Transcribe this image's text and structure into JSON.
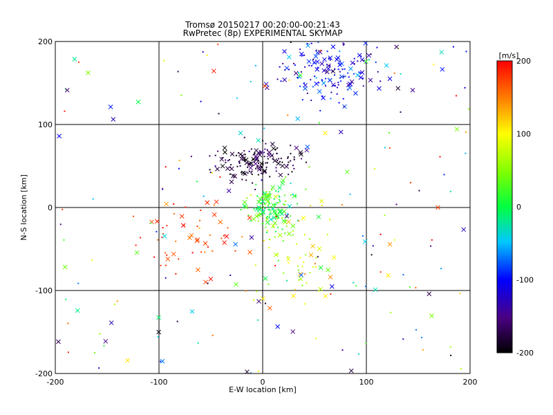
{
  "chart_data": [
    {
      "type": "scatter",
      "title": "Tromsø 20150217 00:20:00-00:21:43",
      "subtitle": "RwPretec (8p) EXPERIMENTAL SKYMAP",
      "xlabel": "E-W location [km]",
      "ylabel": "N-S location [km]",
      "xlim": [
        -200,
        200
      ],
      "ylim": [
        -200,
        200
      ],
      "xticks": [
        "-200",
        "-100",
        "0",
        "100",
        "200"
      ],
      "yticks": [
        "-200",
        "-100",
        "0",
        "100",
        "200"
      ],
      "grid": true,
      "marker_types": [
        "cross",
        "dot"
      ],
      "colorbar": {
        "label": "[m/s]",
        "range": [
          -200,
          200
        ],
        "ticks": [
          "200",
          "100",
          "0",
          "-100",
          "-200"
        ],
        "colormap": "rainbow"
      },
      "clusters": [
        {
          "description": "north-east cluster",
          "center": [
            65,
            165
          ],
          "spread": [
            25,
            20
          ],
          "velocity_mean": -110,
          "velocity_spread": 60
        },
        {
          "description": "central north cluster",
          "center": [
            -5,
            55
          ],
          "spread": [
            20,
            12
          ],
          "velocity_mean": -180,
          "velocity_spread": 40
        },
        {
          "description": "origin cluster",
          "center": [
            10,
            0
          ],
          "spread": [
            12,
            15
          ],
          "velocity_mean": 20,
          "velocity_spread": 50
        },
        {
          "description": "south-west cluster",
          "center": [
            -70,
            -40
          ],
          "spread": [
            35,
            30
          ],
          "velocity_mean": 180,
          "velocity_spread": 40
        },
        {
          "description": "south-east cluster",
          "center": [
            30,
            -50
          ],
          "spread": [
            20,
            40
          ],
          "velocity_mean": 60,
          "velocity_spread": 80
        },
        {
          "description": "scattered background",
          "center": [
            0,
            0
          ],
          "spread": [
            120,
            120
          ],
          "velocity_mean": 0,
          "velocity_spread": 200
        }
      ]
    }
  ]
}
